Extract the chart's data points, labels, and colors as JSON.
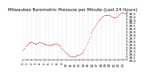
{
  "title": "Milwaukee Barometric Pressure per Minute (Last 24 Hours)",
  "background_color": "#ffffff",
  "plot_bg_color": "#ffffff",
  "line_color": "#cc0000",
  "grid_color": "#bbbbbb",
  "title_fontsize": 4.0,
  "tick_fontsize": 3.0,
  "ylim": [
    29.0,
    30.55
  ],
  "yticks": [
    29.0,
    29.1,
    29.2,
    29.3,
    29.4,
    29.5,
    29.6,
    29.7,
    29.8,
    29.9,
    30.0,
    30.1,
    30.2,
    30.3,
    30.4,
    30.5
  ],
  "pressure_values": [
    29.3,
    29.33,
    29.36,
    29.4,
    29.44,
    29.47,
    29.5,
    29.52,
    29.54,
    29.55,
    29.56,
    29.57,
    29.57,
    29.56,
    29.55,
    29.54,
    29.53,
    29.52,
    29.52,
    29.53,
    29.54,
    29.55,
    29.56,
    29.57,
    29.57,
    29.56,
    29.55,
    29.54,
    29.53,
    29.52,
    29.51,
    29.5,
    29.49,
    29.48,
    29.48,
    29.48,
    29.47,
    29.47,
    29.47,
    29.48,
    29.48,
    29.49,
    29.5,
    29.51,
    29.51,
    29.51,
    29.51,
    29.51,
    29.5,
    29.49,
    29.47,
    29.45,
    29.43,
    29.4,
    29.37,
    29.34,
    29.31,
    29.28,
    29.26,
    29.24,
    29.22,
    29.2,
    29.18,
    29.16,
    29.14,
    29.13,
    29.12,
    29.11,
    29.11,
    29.1,
    29.1,
    29.11,
    29.12,
    29.13,
    29.14,
    29.15,
    29.16,
    29.17,
    29.18,
    29.19,
    29.2,
    29.22,
    29.24,
    29.27,
    29.3,
    29.34,
    29.38,
    29.43,
    29.48,
    29.54,
    29.6,
    29.66,
    29.72,
    29.78,
    29.84,
    29.89,
    29.94,
    29.98,
    30.02,
    30.06,
    30.1,
    30.14,
    30.18,
    30.22,
    30.25,
    30.28,
    30.31,
    30.34,
    30.36,
    30.38,
    30.4,
    30.41,
    30.42,
    30.43,
    30.44,
    30.44,
    30.44,
    30.44,
    30.44,
    30.43,
    30.42,
    30.41,
    30.4,
    30.38,
    30.37,
    30.36,
    30.35,
    30.35,
    30.36,
    30.37,
    30.39,
    30.41,
    30.43,
    30.46,
    30.48,
    30.5,
    30.51,
    30.52,
    30.52,
    30.51,
    30.5,
    30.49,
    30.48,
    30.47
  ],
  "num_xticks": 25,
  "xtick_labels": [
    "0",
    "1",
    "2",
    "3",
    "4",
    "5",
    "6",
    "7",
    "8",
    "9",
    "10",
    "11",
    "12",
    "13",
    "14",
    "15",
    "16",
    "17",
    "18",
    "19",
    "20",
    "21",
    "22",
    "23",
    "24"
  ]
}
